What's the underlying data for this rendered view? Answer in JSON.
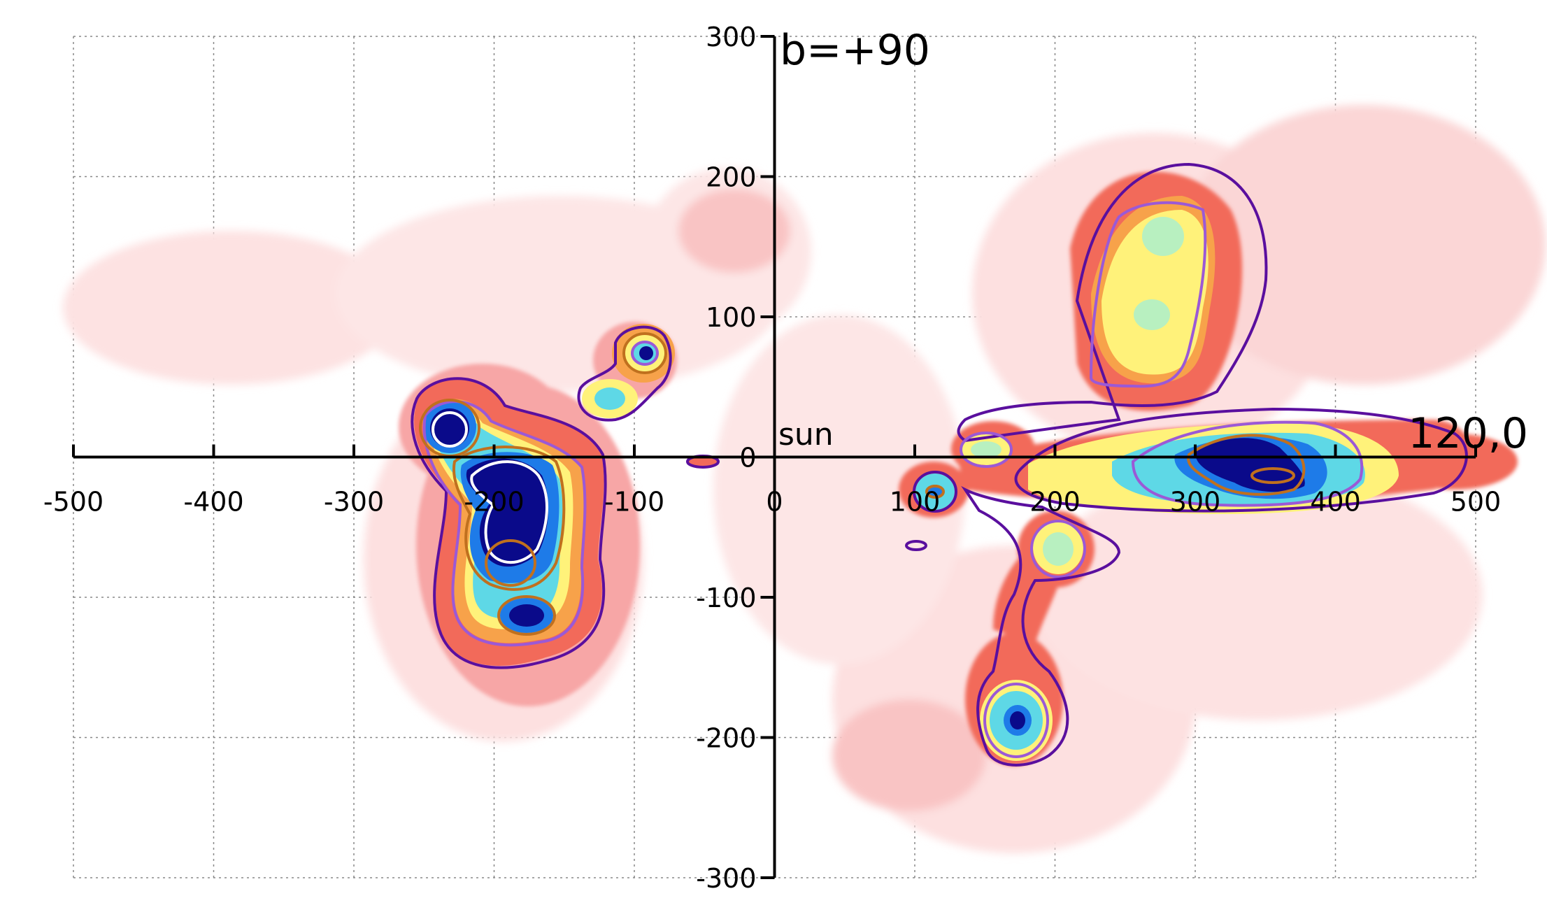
{
  "chart_data": {
    "type": "heatmap",
    "title": "",
    "xlabel": "",
    "ylabel": "",
    "xlim": [
      -500,
      500
    ],
    "ylim": [
      -300,
      300
    ],
    "grid": true,
    "x_ticks": [
      -500,
      -400,
      -300,
      -200,
      -100,
      0,
      100,
      200,
      300,
      400,
      500
    ],
    "y_ticks": [
      300,
      200,
      100,
      0,
      -100,
      -200,
      -300
    ],
    "annotations": [
      {
        "text": "b=+90",
        "x": 0,
        "y": 300
      },
      {
        "text": "sun",
        "x": 0,
        "y": 0
      },
      {
        "text": "120,0",
        "x": 500,
        "y": 0
      }
    ],
    "colormap": [
      "#fde6e6",
      "#f9c4c4",
      "#f39a9a",
      "#f26a5a",
      "#f7a24a",
      "#fff27a",
      "#b8f0c0",
      "#5ed8e6",
      "#1e7be8",
      "#0a0a8a"
    ],
    "contour_colors": [
      "#5a0f9e",
      "#9b59d6",
      "#c0701e",
      "#ffffff"
    ],
    "density_peaks": [
      {
        "x": -230,
        "y": 20,
        "value": 1.0
      },
      {
        "x": -180,
        "y": -30,
        "value": 1.0
      },
      {
        "x": -150,
        "y": -40,
        "value": 0.95
      },
      {
        "x": -185,
        "y": -75,
        "value": 0.85
      },
      {
        "x": -175,
        "y": -115,
        "value": 0.8
      },
      {
        "x": -95,
        "y": 75,
        "value": 0.65
      },
      {
        "x": -120,
        "y": 40,
        "value": 0.5
      },
      {
        "x": -55,
        "y": 0,
        "value": 0.2
      },
      {
        "x": 110,
        "y": -25,
        "value": 0.55
      },
      {
        "x": 150,
        "y": 5,
        "value": 0.45
      },
      {
        "x": 200,
        "y": -65,
        "value": 0.5
      },
      {
        "x": 270,
        "y": 155,
        "value": 0.5
      },
      {
        "x": 265,
        "y": 100,
        "value": 0.5
      },
      {
        "x": 330,
        "y": 15,
        "value": 1.0
      },
      {
        "x": 355,
        "y": -10,
        "value": 0.95
      },
      {
        "x": 170,
        "y": -185,
        "value": 0.9
      }
    ]
  }
}
